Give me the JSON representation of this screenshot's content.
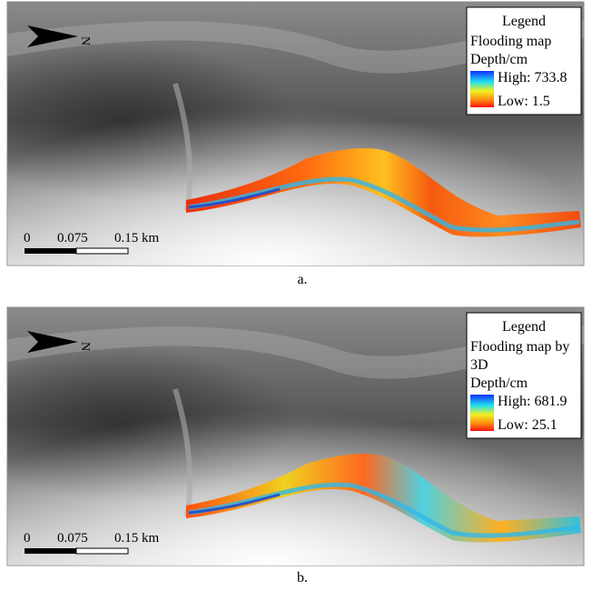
{
  "panels": [
    {
      "legend": {
        "title": "Legend",
        "lines": [
          "Flooding map",
          "Depth/cm"
        ],
        "high": "High: 733.8",
        "low": "Low: 1.5"
      },
      "north": "N",
      "scale": [
        "0",
        "0.075",
        "0.15 km"
      ],
      "caption": "a."
    },
    {
      "legend": {
        "title": "Legend",
        "lines": [
          "Flooding map by",
          "3D",
          "Depth/cm"
        ],
        "high": "High: 681.9",
        "low": "Low: 25.1"
      },
      "north": "N",
      "scale": [
        "0",
        "0.075",
        "0.15 km"
      ],
      "caption": "b."
    }
  ]
}
